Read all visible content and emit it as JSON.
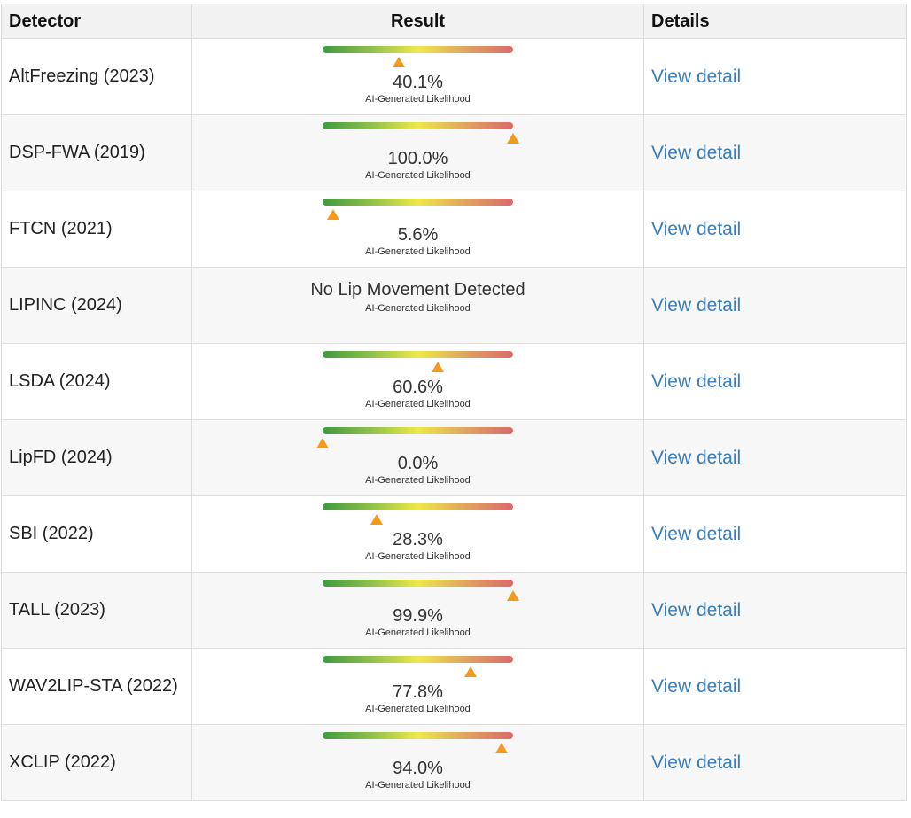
{
  "header": {
    "detector": "Detector",
    "result": "Result",
    "details": "Details"
  },
  "link_label": "View detail",
  "sublabel": "AI-Generated Likelihood",
  "colors": {
    "marker": "#f39a1a",
    "link": "#3a7db8",
    "bar_start": "#3f9a3f",
    "bar_mid": "#eee84a",
    "bar_end": "#d86a6a"
  },
  "rows": [
    {
      "name": "AltFreezing (2023)",
      "value": 40.1,
      "text": "40.1%"
    },
    {
      "name": "DSP-FWA (2019)",
      "value": 100.0,
      "text": "100.0%"
    },
    {
      "name": "FTCN (2021)",
      "value": 5.6,
      "text": "5.6%"
    },
    {
      "name": "LIPINC (2024)",
      "value": null,
      "text": "No Lip Movement Detected"
    },
    {
      "name": "LSDA (2024)",
      "value": 60.6,
      "text": "60.6%"
    },
    {
      "name": "LipFD (2024)",
      "value": 0.0,
      "text": "0.0%"
    },
    {
      "name": "SBI (2022)",
      "value": 28.3,
      "text": "28.3%"
    },
    {
      "name": "TALL (2023)",
      "value": 99.9,
      "text": "99.9%"
    },
    {
      "name": "WAV2LIP-STA (2022)",
      "value": 77.8,
      "text": "77.8%"
    },
    {
      "name": "XCLIP (2022)",
      "value": 94.0,
      "text": "94.0%"
    }
  ]
}
